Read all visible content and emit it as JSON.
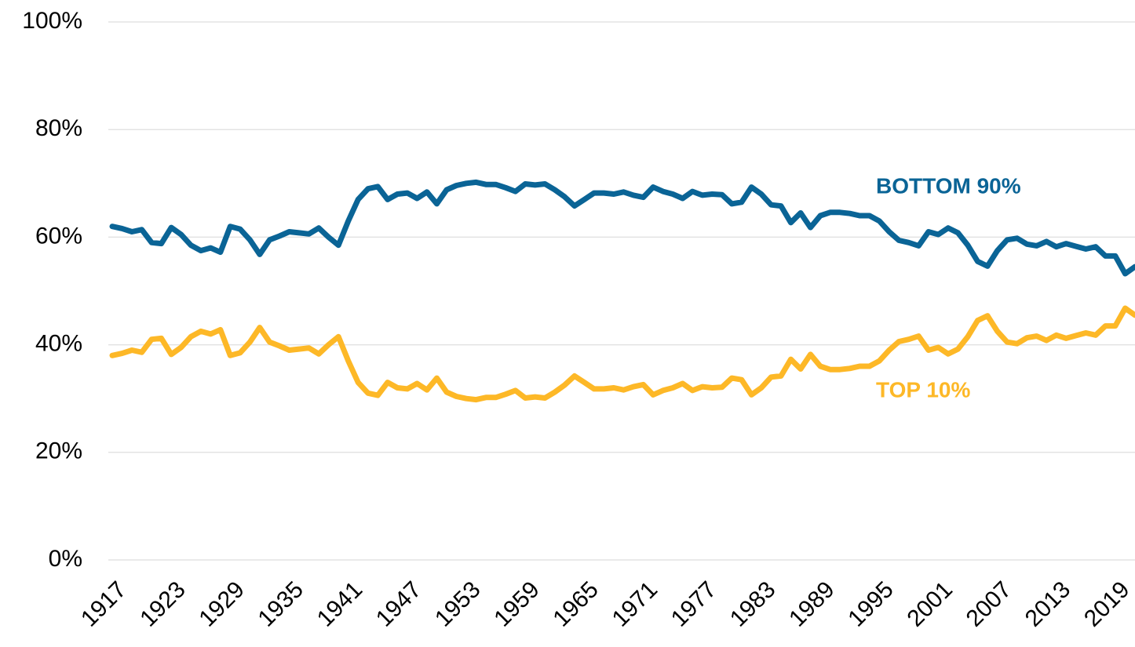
{
  "chart_data": {
    "type": "line",
    "x": [
      1917,
      1918,
      1919,
      1920,
      1921,
      1922,
      1923,
      1924,
      1925,
      1926,
      1927,
      1928,
      1929,
      1930,
      1931,
      1932,
      1933,
      1934,
      1935,
      1936,
      1937,
      1938,
      1939,
      1940,
      1941,
      1942,
      1943,
      1944,
      1945,
      1946,
      1947,
      1948,
      1949,
      1950,
      1951,
      1952,
      1953,
      1954,
      1955,
      1956,
      1957,
      1958,
      1959,
      1960,
      1961,
      1962,
      1963,
      1964,
      1965,
      1966,
      1967,
      1968,
      1969,
      1970,
      1971,
      1972,
      1973,
      1974,
      1975,
      1976,
      1977,
      1978,
      1979,
      1980,
      1981,
      1982,
      1983,
      1984,
      1985,
      1986,
      1987,
      1988,
      1989,
      1990,
      1991,
      1992,
      1993,
      1994,
      1995,
      1996,
      1997,
      1998,
      1999,
      2000,
      2001,
      2002,
      2003,
      2004,
      2005,
      2006,
      2007,
      2008,
      2009,
      2010,
      2011,
      2012,
      2013,
      2014,
      2015,
      2016,
      2017,
      2018,
      2019,
      2020,
      2021
    ],
    "series": [
      {
        "name": "BOTTOM 90%",
        "color": "#0a6496",
        "values": [
          62.0,
          61.6,
          61.0,
          61.4,
          59.0,
          58.8,
          61.8,
          60.5,
          58.5,
          57.5,
          58.0,
          57.2,
          62.0,
          61.5,
          59.5,
          56.8,
          59.5,
          60.2,
          61.0,
          60.8,
          60.6,
          61.7,
          60.0,
          58.5,
          63.0,
          67.0,
          69.0,
          69.4,
          67.0,
          68.0,
          68.2,
          67.2,
          68.4,
          66.2,
          68.8,
          69.6,
          70.0,
          70.2,
          69.8,
          69.8,
          69.2,
          68.5,
          69.9,
          69.7,
          69.9,
          68.8,
          67.5,
          65.8,
          67.0,
          68.2,
          68.2,
          68.0,
          68.4,
          67.8,
          67.4,
          69.3,
          68.5,
          68.0,
          67.2,
          68.5,
          67.8,
          68.0,
          67.9,
          66.2,
          66.5,
          69.3,
          68.0,
          66.0,
          65.8,
          62.7,
          64.5,
          61.8,
          64.0,
          64.6,
          64.6,
          64.4,
          64.0,
          64.0,
          63.0,
          61.0,
          59.4,
          59.0,
          58.4,
          61.0,
          60.5,
          61.7,
          60.8,
          58.5,
          55.5,
          54.6,
          57.5,
          59.5,
          59.8,
          58.7,
          58.4,
          59.2,
          58.2,
          58.8,
          58.3,
          57.8,
          58.2,
          56.5,
          56.5,
          53.2,
          54.5
        ]
      },
      {
        "name": "TOP 10%",
        "color": "#fdb827",
        "values": [
          38.0,
          38.4,
          39.0,
          38.6,
          41.0,
          41.2,
          38.2,
          39.5,
          41.5,
          42.5,
          42.0,
          42.8,
          38.0,
          38.5,
          40.5,
          43.2,
          40.5,
          39.8,
          39.0,
          39.2,
          39.4,
          38.3,
          40.0,
          41.5,
          37.0,
          33.0,
          31.0,
          30.6,
          33.0,
          32.0,
          31.8,
          32.8,
          31.6,
          33.8,
          31.2,
          30.4,
          30.0,
          29.8,
          30.2,
          30.2,
          30.8,
          31.5,
          30.1,
          30.3,
          30.1,
          31.2,
          32.5,
          34.2,
          33.0,
          31.8,
          31.8,
          32.0,
          31.6,
          32.2,
          32.6,
          30.7,
          31.5,
          32.0,
          32.8,
          31.5,
          32.2,
          32.0,
          32.1,
          33.8,
          33.5,
          30.7,
          32.0,
          34.0,
          34.2,
          37.3,
          35.5,
          38.2,
          36.0,
          35.4,
          35.4,
          35.6,
          36.0,
          36.0,
          37.0,
          39.0,
          40.6,
          41.0,
          41.6,
          39.0,
          39.5,
          38.3,
          39.2,
          41.5,
          44.5,
          45.4,
          42.5,
          40.5,
          40.2,
          41.3,
          41.6,
          40.8,
          41.8,
          41.2,
          41.7,
          42.2,
          41.8,
          43.5,
          43.5,
          46.8,
          45.5
        ]
      }
    ],
    "xlim": [
      1917,
      2021
    ],
    "xticks": [
      1917,
      1923,
      1929,
      1935,
      1941,
      1947,
      1953,
      1959,
      1965,
      1971,
      1977,
      1983,
      1989,
      1995,
      2001,
      2007,
      2013,
      2019
    ],
    "ylim": [
      0,
      100
    ],
    "yticks": [
      {
        "value": 0,
        "label": "0%"
      },
      {
        "value": 20,
        "label": "20%"
      },
      {
        "value": 40,
        "label": "40%"
      },
      {
        "value": 60,
        "label": "60%"
      },
      {
        "value": 80,
        "label": "80%"
      },
      {
        "value": 100,
        "label": "100%"
      }
    ],
    "grid": true
  }
}
